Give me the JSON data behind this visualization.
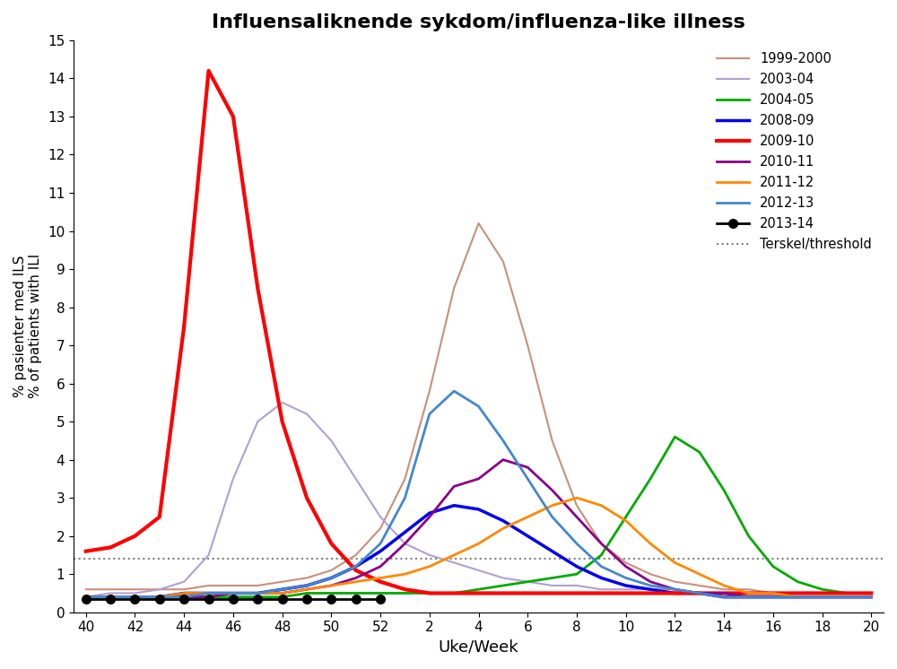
{
  "title": "Influensaliknende sykdom/influenza-like illness",
  "ylabel1": "% pasienter med ILS",
  "ylabel2": "% of patients with ILI",
  "xlabel": "Uke/Week",
  "threshold": 1.4,
  "threshold_label": "Terskel/threshold",
  "tick_weeks": [
    40,
    42,
    44,
    46,
    48,
    50,
    52,
    2,
    4,
    6,
    8,
    10,
    12,
    14,
    16,
    18,
    20
  ],
  "ylim": [
    0,
    15
  ],
  "series": {
    "1999-2000": {
      "color": "#c8907a",
      "linewidth": 1.5,
      "weeks": [
        40,
        41,
        42,
        43,
        44,
        45,
        46,
        47,
        48,
        49,
        50,
        51,
        52,
        1,
        2,
        3,
        4,
        5,
        6,
        7,
        8,
        9,
        10,
        11,
        12,
        13,
        14,
        15,
        16,
        17,
        18,
        19,
        20
      ],
      "data": [
        0.6,
        0.6,
        0.6,
        0.6,
        0.6,
        0.7,
        0.7,
        0.7,
        0.8,
        0.9,
        1.1,
        1.5,
        2.2,
        3.5,
        5.8,
        8.5,
        10.2,
        9.2,
        7.0,
        4.5,
        2.8,
        1.8,
        1.3,
        1.0,
        0.8,
        0.7,
        0.6,
        0.6,
        0.5,
        0.5,
        0.5,
        0.5,
        0.5
      ]
    },
    "2003-04": {
      "color": "#b0a0d0",
      "linewidth": 1.5,
      "weeks": [
        40,
        41,
        42,
        43,
        44,
        45,
        46,
        47,
        48,
        49,
        50,
        51,
        52,
        1,
        2,
        3,
        4,
        5,
        6,
        7,
        8,
        9,
        10,
        11,
        12,
        13,
        14,
        15,
        16,
        17,
        18,
        19,
        20
      ],
      "data": [
        0.4,
        0.5,
        0.5,
        0.6,
        0.8,
        1.5,
        3.5,
        5.0,
        5.5,
        5.2,
        4.5,
        3.5,
        2.5,
        1.8,
        1.5,
        1.3,
        1.1,
        0.9,
        0.8,
        0.7,
        0.7,
        0.6,
        0.6,
        0.6,
        0.6,
        0.5,
        0.5,
        0.5,
        0.5,
        0.5,
        0.5,
        0.5,
        0.5
      ]
    },
    "2004-05": {
      "color": "#00aa00",
      "linewidth": 2.0,
      "weeks": [
        40,
        41,
        42,
        43,
        44,
        45,
        46,
        47,
        48,
        49,
        50,
        51,
        52,
        1,
        2,
        3,
        4,
        5,
        6,
        7,
        8,
        9,
        10,
        11,
        12,
        13,
        14,
        15,
        16,
        17,
        18,
        19,
        20
      ],
      "data": [
        0.4,
        0.4,
        0.4,
        0.4,
        0.4,
        0.4,
        0.4,
        0.4,
        0.4,
        0.5,
        0.5,
        0.5,
        0.5,
        0.5,
        0.5,
        0.5,
        0.6,
        0.7,
        0.8,
        0.9,
        1.0,
        1.5,
        2.5,
        3.5,
        4.6,
        4.2,
        3.2,
        2.0,
        1.2,
        0.8,
        0.6,
        0.5,
        0.5
      ]
    },
    "2008-09": {
      "color": "#0000ee",
      "linewidth": 2.5,
      "weeks": [
        40,
        41,
        42,
        43,
        44,
        45,
        46,
        47,
        48,
        49,
        50,
        51,
        52,
        1,
        2,
        3,
        4,
        5,
        6,
        7,
        8,
        9,
        10,
        11,
        12,
        13,
        14,
        15,
        16,
        17,
        18,
        19,
        20
      ],
      "data": [
        0.4,
        0.4,
        0.4,
        0.4,
        0.5,
        0.5,
        0.5,
        0.5,
        0.6,
        0.7,
        0.9,
        1.2,
        1.6,
        2.1,
        2.6,
        2.8,
        2.7,
        2.4,
        2.0,
        1.6,
        1.2,
        0.9,
        0.7,
        0.6,
        0.5,
        0.5,
        0.4,
        0.4,
        0.4,
        0.4,
        0.4,
        0.4,
        0.4
      ]
    },
    "2009-10": {
      "color": "#ff0000",
      "linewidth": 3.0,
      "weeks": [
        40,
        41,
        42,
        43,
        44,
        45,
        46,
        47,
        48,
        49,
        50,
        51,
        52,
        1,
        2,
        3,
        4,
        5,
        6,
        7,
        8,
        9,
        10,
        11,
        12,
        13,
        14,
        15,
        16,
        17,
        18,
        19,
        20
      ],
      "data": [
        1.6,
        1.7,
        2.0,
        2.5,
        7.5,
        14.2,
        13.0,
        8.5,
        5.0,
        3.0,
        1.8,
        1.1,
        0.8,
        0.6,
        0.5,
        0.5,
        0.5,
        0.5,
        0.5,
        0.5,
        0.5,
        0.5,
        0.5,
        0.5,
        0.5,
        0.5,
        0.5,
        0.5,
        0.5,
        0.5,
        0.5,
        0.5,
        0.5
      ]
    },
    "2010-11": {
      "color": "#880088",
      "linewidth": 2.0,
      "weeks": [
        40,
        41,
        42,
        43,
        44,
        45,
        46,
        47,
        48,
        49,
        50,
        51,
        52,
        1,
        2,
        3,
        4,
        5,
        6,
        7,
        8,
        9,
        10,
        11,
        12,
        13,
        14,
        15,
        16,
        17,
        18,
        19,
        20
      ],
      "data": [
        0.4,
        0.4,
        0.4,
        0.4,
        0.4,
        0.4,
        0.5,
        0.5,
        0.5,
        0.6,
        0.7,
        0.9,
        1.2,
        1.8,
        2.5,
        3.3,
        3.5,
        4.0,
        3.8,
        3.2,
        2.5,
        1.8,
        1.2,
        0.8,
        0.6,
        0.5,
        0.5,
        0.4,
        0.4,
        0.4,
        0.4,
        0.4,
        0.4
      ]
    },
    "2011-12": {
      "color": "#ff8800",
      "linewidth": 2.0,
      "weeks": [
        40,
        41,
        42,
        43,
        44,
        45,
        46,
        47,
        48,
        49,
        50,
        51,
        52,
        1,
        2,
        3,
        4,
        5,
        6,
        7,
        8,
        9,
        10,
        11,
        12,
        13,
        14,
        15,
        16,
        17,
        18,
        19,
        20
      ],
      "data": [
        0.4,
        0.4,
        0.4,
        0.4,
        0.5,
        0.5,
        0.5,
        0.5,
        0.5,
        0.6,
        0.7,
        0.8,
        0.9,
        1.0,
        1.2,
        1.5,
        1.8,
        2.2,
        2.5,
        2.8,
        3.0,
        2.8,
        2.4,
        1.8,
        1.3,
        1.0,
        0.7,
        0.5,
        0.5,
        0.4,
        0.4,
        0.4,
        0.4
      ]
    },
    "2012-13": {
      "color": "#4488cc",
      "linewidth": 2.0,
      "weeks": [
        40,
        41,
        42,
        43,
        44,
        45,
        46,
        47,
        48,
        49,
        50,
        51,
        52,
        1,
        2,
        3,
        4,
        5,
        6,
        7,
        8,
        9,
        10,
        11,
        12,
        13,
        14,
        15,
        16,
        17,
        18,
        19,
        20
      ],
      "data": [
        0.4,
        0.4,
        0.4,
        0.4,
        0.4,
        0.5,
        0.5,
        0.5,
        0.6,
        0.7,
        0.9,
        1.2,
        1.8,
        3.0,
        5.2,
        5.8,
        5.4,
        4.5,
        3.5,
        2.5,
        1.8,
        1.2,
        0.9,
        0.7,
        0.6,
        0.5,
        0.4,
        0.4,
        0.4,
        0.4,
        0.4,
        0.4,
        0.4
      ]
    },
    "2013-14": {
      "color": "#000000",
      "linewidth": 2.0,
      "marker": "o",
      "markersize": 7,
      "weeks": [
        40,
        41,
        42,
        43,
        44,
        45,
        46,
        47,
        48,
        49,
        50,
        51,
        52
      ],
      "data": [
        0.35,
        0.35,
        0.35,
        0.35,
        0.35,
        0.35,
        0.35,
        0.35,
        0.35,
        0.35,
        0.35,
        0.35,
        0.35
      ]
    }
  }
}
